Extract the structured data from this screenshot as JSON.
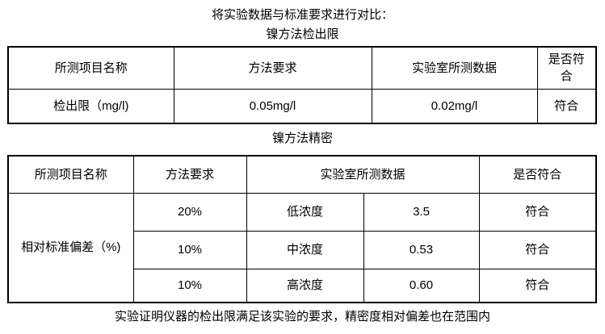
{
  "document": {
    "title": "将实验数据与标准要求进行对比：",
    "table1_caption": "镍方法检出限",
    "table2_caption": "镍方法精密",
    "conclusion": "实验证明仪器的检出限满足该实验的要求，精密度相对偏差也在范围内"
  },
  "table1": {
    "headers": [
      "所测项目名称",
      "方法要求",
      "实验室所测数据",
      "是否符合"
    ],
    "rows": [
      [
        "检出限（mg/l)",
        "0.05mg/l",
        "0.02mg/l",
        "符合"
      ]
    ]
  },
  "table2": {
    "headers": [
      "所测项目名称",
      "方法要求",
      "实验室所测数据",
      "是否符合"
    ],
    "row_label": "相对标准偏差（%)",
    "rows": [
      [
        "20%",
        "低浓度",
        "3.5",
        "符合"
      ],
      [
        "10%",
        "中浓度",
        "0.53",
        "符合"
      ],
      [
        "10%",
        "高浓度",
        "0.60",
        "符合"
      ]
    ]
  }
}
